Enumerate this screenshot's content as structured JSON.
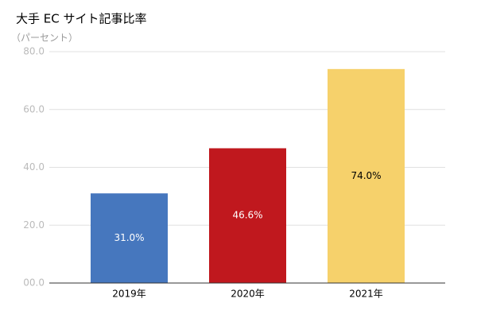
{
  "chart_data": {
    "type": "bar",
    "title": "大手 EC サイト記事比率",
    "y_label": "（パーセント）",
    "categories": [
      "2019年",
      "2020年",
      "2021年"
    ],
    "values": [
      31.0,
      46.6,
      74.0
    ],
    "value_labels": [
      "31.0%",
      "46.6%",
      "74.0%"
    ],
    "colors": [
      "#4677be",
      "#c0181e",
      "#f6d16b"
    ],
    "ylim": [
      0,
      80
    ],
    "yticks": [
      {
        "value": 0,
        "label": "00.0"
      },
      {
        "value": 20,
        "label": "20.0"
      },
      {
        "value": 40,
        "label": "40.0"
      },
      {
        "value": 60,
        "label": "60.0"
      },
      {
        "value": 80,
        "label": "80.0"
      }
    ],
    "grid": true
  }
}
